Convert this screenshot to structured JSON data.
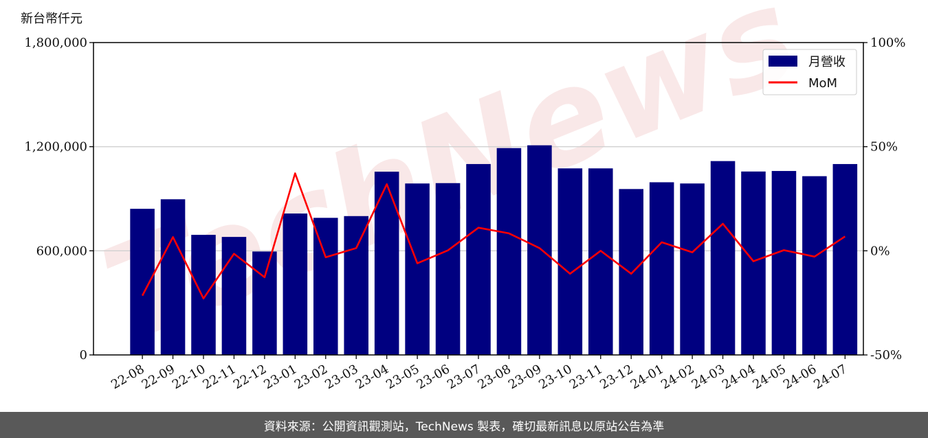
{
  "chart_data": {
    "type": "bar",
    "unit_label": "新台幣仟元",
    "categories": [
      "22-08",
      "22-09",
      "22-10",
      "22-11",
      "22-12",
      "23-01",
      "23-02",
      "23-03",
      "23-04",
      "23-05",
      "23-06",
      "23-07",
      "23-08",
      "23-09",
      "23-10",
      "23-11",
      "23-12",
      "24-01",
      "24-02",
      "24-03",
      "24-04",
      "24-05",
      "24-06",
      "24-07"
    ],
    "series": [
      {
        "name": "月營收",
        "axis": "left",
        "color": "#000080",
        "values": [
          842000,
          897000,
          692000,
          680000,
          596000,
          815000,
          790000,
          800000,
          1056000,
          988000,
          990000,
          1100000,
          1192000,
          1208000,
          1075000,
          1075000,
          956000,
          995000,
          988000,
          1117000,
          1057000,
          1060000,
          1030000,
          1100000
        ]
      },
      {
        "name": "MoM",
        "axis": "right",
        "color": "#ff0000",
        "values": [
          -21.5,
          6.6,
          -22.9,
          -1.4,
          -12.7,
          37.2,
          -3.1,
          1.3,
          32.0,
          -6.0,
          0.2,
          11.1,
          8.4,
          1.3,
          -11.0,
          0.0,
          -11.0,
          4.1,
          -0.7,
          13.0,
          -5.0,
          0.3,
          -2.8,
          6.9
        ]
      }
    ],
    "y_left": {
      "lim": [
        0,
        1800000
      ],
      "ticks": [
        "0",
        "600,000",
        "1,200,000",
        "1,800,000"
      ]
    },
    "y_right": {
      "lim": [
        -50,
        100
      ],
      "ticks": [
        "-50%",
        "0%",
        "50%",
        "100%"
      ]
    },
    "grid": "horizontal",
    "legend_position": "top-right",
    "watermark": "TechNews"
  },
  "footer": {
    "text": "資料來源：公開資訊觀測站，TechNews 製表，確切最新訊息以原站公告為準"
  }
}
